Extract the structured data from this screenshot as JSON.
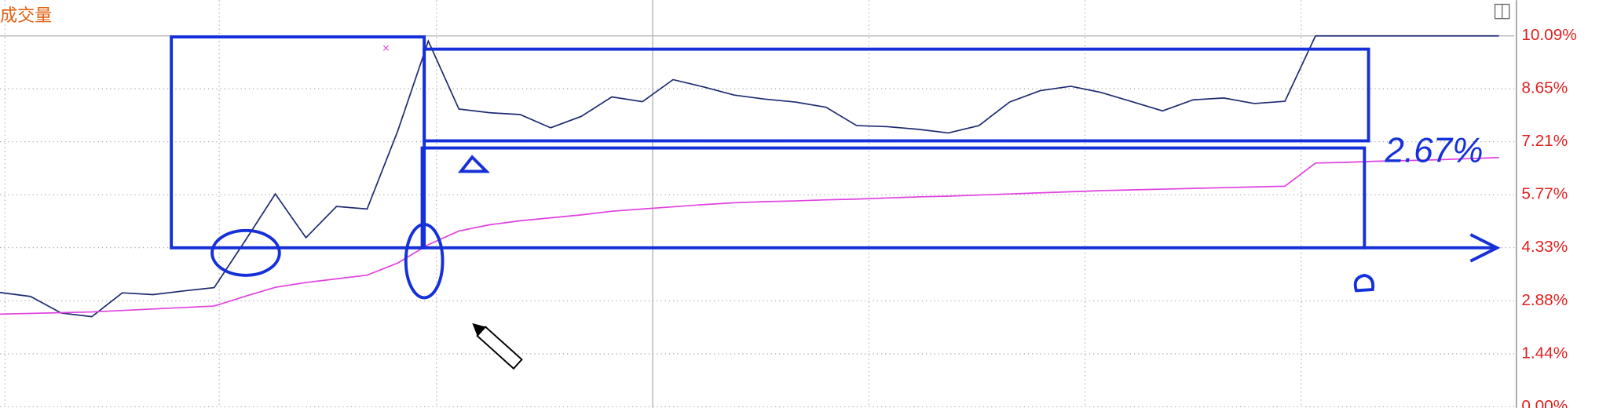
{
  "chart_data": {
    "type": "line",
    "title": "成交量",
    "annotation": "2.67%",
    "categories": [
      null,
      null,
      null,
      null,
      null,
      null,
      null,
      null,
      null,
      null,
      null,
      null,
      null,
      null,
      null,
      null,
      null,
      null,
      null,
      null,
      null,
      null,
      null,
      null,
      null,
      null,
      null,
      null,
      null,
      null,
      null,
      null,
      null,
      null,
      null,
      null,
      null,
      null,
      null,
      null,
      null,
      null,
      null,
      null,
      null,
      null,
      null,
      null,
      null,
      null
    ],
    "series": [
      {
        "color": "#1c2a70",
        "values": [
          3.11,
          3.0,
          2.55,
          2.45,
          3.1,
          3.05,
          3.15,
          3.24,
          4.5,
          5.79,
          4.6,
          5.45,
          5.38,
          7.5,
          9.95,
          8.1,
          8.0,
          7.95,
          7.59,
          7.9,
          8.43,
          8.3,
          8.9,
          8.7,
          8.48,
          8.37,
          8.29,
          8.15,
          7.65,
          7.62,
          7.55,
          7.45,
          7.65,
          8.29,
          8.6,
          8.72,
          8.55,
          8.3,
          8.05,
          8.35,
          8.4,
          8.25,
          8.31,
          10.09,
          10.09,
          10.09,
          10.09,
          10.09,
          10.09,
          10.09
        ]
      },
      {
        "color": "#e040e0",
        "values": [
          2.52,
          2.54,
          2.56,
          2.58,
          2.62,
          2.66,
          2.7,
          2.74,
          3.0,
          3.25,
          3.38,
          3.48,
          3.58,
          3.91,
          4.41,
          4.78,
          4.95,
          5.06,
          5.14,
          5.22,
          5.32,
          5.38,
          5.44,
          5.5,
          5.55,
          5.58,
          5.6,
          5.63,
          5.65,
          5.68,
          5.71,
          5.73,
          5.76,
          5.79,
          5.82,
          5.85,
          5.88,
          5.9,
          5.92,
          5.94,
          5.96,
          5.98,
          6.0,
          6.63,
          6.65,
          6.68,
          6.7,
          6.72,
          6.75,
          6.78
        ]
      }
    ],
    "ylim": [
      0,
      11.06
    ],
    "yticks": [
      {
        "value": 10.09,
        "label": "10.09%"
      },
      {
        "value": 8.65,
        "label": "8.65%"
      },
      {
        "value": 7.21,
        "label": "7.21%"
      },
      {
        "value": 5.77,
        "label": "5.77%"
      },
      {
        "value": 4.33,
        "label": "4.33%"
      },
      {
        "value": 2.88,
        "label": "2.88%"
      },
      {
        "value": 1.44,
        "label": "1.44%"
      },
      {
        "value": 0,
        "label": "0.00%"
      }
    ],
    "grid": true,
    "tick_color": "#e02020"
  }
}
